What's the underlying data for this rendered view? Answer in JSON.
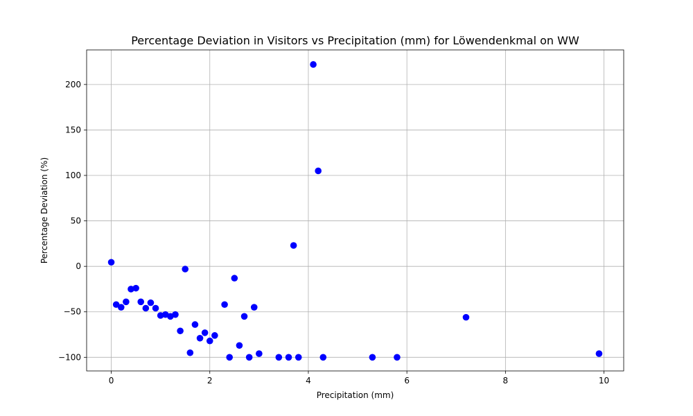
{
  "chart_data": {
    "type": "scatter",
    "title": "Percentage Deviation in Visitors vs Precipitation (mm) for Löwendenkmal on WW",
    "xlabel": "Precipitation (mm)",
    "ylabel": "Percentage Deviation (%)",
    "xlim": [
      -0.5,
      10.4
    ],
    "ylim": [
      -115,
      238
    ],
    "xticks": [
      0,
      2,
      4,
      6,
      8,
      10
    ],
    "yticks": [
      -100,
      -50,
      0,
      50,
      100,
      150,
      200
    ],
    "xtick_labels": [
      "0",
      "2",
      "4",
      "6",
      "8",
      "10"
    ],
    "ytick_labels": [
      "−100",
      "−50",
      "0",
      "50",
      "100",
      "150",
      "200"
    ],
    "grid": true,
    "marker_color": "#0000ff",
    "points": [
      {
        "x": 0.0,
        "y": 4.5
      },
      {
        "x": 0.1,
        "y": -42
      },
      {
        "x": 0.2,
        "y": -45
      },
      {
        "x": 0.3,
        "y": -39
      },
      {
        "x": 0.4,
        "y": -25
      },
      {
        "x": 0.5,
        "y": -24
      },
      {
        "x": 0.6,
        "y": -39
      },
      {
        "x": 0.7,
        "y": -46
      },
      {
        "x": 0.8,
        "y": -40
      },
      {
        "x": 0.9,
        "y": -46
      },
      {
        "x": 1.0,
        "y": -54
      },
      {
        "x": 1.1,
        "y": -53
      },
      {
        "x": 1.2,
        "y": -55
      },
      {
        "x": 1.3,
        "y": -53
      },
      {
        "x": 1.4,
        "y": -71
      },
      {
        "x": 1.5,
        "y": -3
      },
      {
        "x": 1.6,
        "y": -95
      },
      {
        "x": 1.7,
        "y": -64
      },
      {
        "x": 1.8,
        "y": -79
      },
      {
        "x": 1.9,
        "y": -73
      },
      {
        "x": 2.0,
        "y": -82
      },
      {
        "x": 2.1,
        "y": -76
      },
      {
        "x": 2.3,
        "y": -42
      },
      {
        "x": 2.4,
        "y": -100
      },
      {
        "x": 2.5,
        "y": -13
      },
      {
        "x": 2.6,
        "y": -87
      },
      {
        "x": 2.7,
        "y": -55
      },
      {
        "x": 2.8,
        "y": -100
      },
      {
        "x": 2.9,
        "y": -45
      },
      {
        "x": 3.0,
        "y": -96
      },
      {
        "x": 3.4,
        "y": -100
      },
      {
        "x": 3.6,
        "y": -100
      },
      {
        "x": 3.7,
        "y": 23
      },
      {
        "x": 3.8,
        "y": -100
      },
      {
        "x": 4.1,
        "y": 222
      },
      {
        "x": 4.2,
        "y": 105
      },
      {
        "x": 4.3,
        "y": -100
      },
      {
        "x": 5.3,
        "y": -100
      },
      {
        "x": 5.8,
        "y": -100
      },
      {
        "x": 7.2,
        "y": -56
      },
      {
        "x": 9.9,
        "y": -96
      }
    ]
  }
}
